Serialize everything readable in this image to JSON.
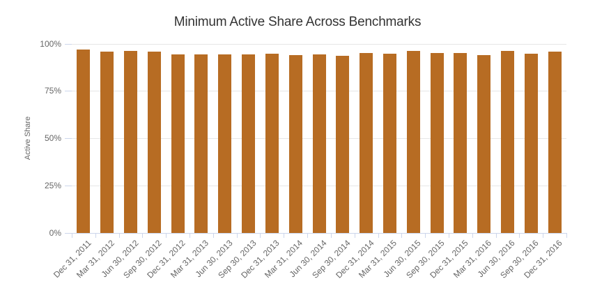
{
  "title": "Minimum Active Share Across Benchmarks",
  "chart_data": {
    "type": "bar",
    "title": "Minimum Active Share Across Benchmarks",
    "xlabel": "",
    "ylabel": "Active Share",
    "ylim": [
      0,
      100
    ],
    "grid": true,
    "legend": "none",
    "ytick_values": [
      0,
      25,
      50,
      75,
      100
    ],
    "ytick_labels": [
      "0%",
      "25%",
      "50%",
      "75%",
      "100%"
    ],
    "categories": [
      "Dec 31, 2011",
      "Mar 31, 2012",
      "Jun 30, 2012",
      "Sep 30, 2012",
      "Dec 31, 2012",
      "Mar 31, 2013",
      "Jun 30, 2013",
      "Sep 30, 2013",
      "Dec 31, 2013",
      "Mar 31, 2014",
      "Jun 30, 2014",
      "Sep 30, 2014",
      "Dec 31, 2014",
      "Mar 31, 2015",
      "Jun 30, 2015",
      "Sep 30, 2015",
      "Dec 31, 2015",
      "Mar 31, 2016",
      "Jun 30, 2016",
      "Sep 30, 2016",
      "Dec 31, 2016"
    ],
    "values": [
      96.9,
      95.7,
      96.2,
      95.7,
      94.3,
      94.3,
      94.3,
      94.3,
      94.5,
      93.9,
      94.2,
      93.4,
      95.2,
      94.6,
      96.1,
      95.0,
      95.0,
      94.0,
      96.2,
      94.8,
      95.8
    ],
    "colors": {
      "bar": "#b76c23",
      "gridline": "#e6e6e6",
      "axis_line": "#ccd6eb",
      "tick": "#ccd6eb",
      "axis_label_text": "#666666",
      "title_text": "#333333",
      "background": "#ffffff"
    }
  }
}
